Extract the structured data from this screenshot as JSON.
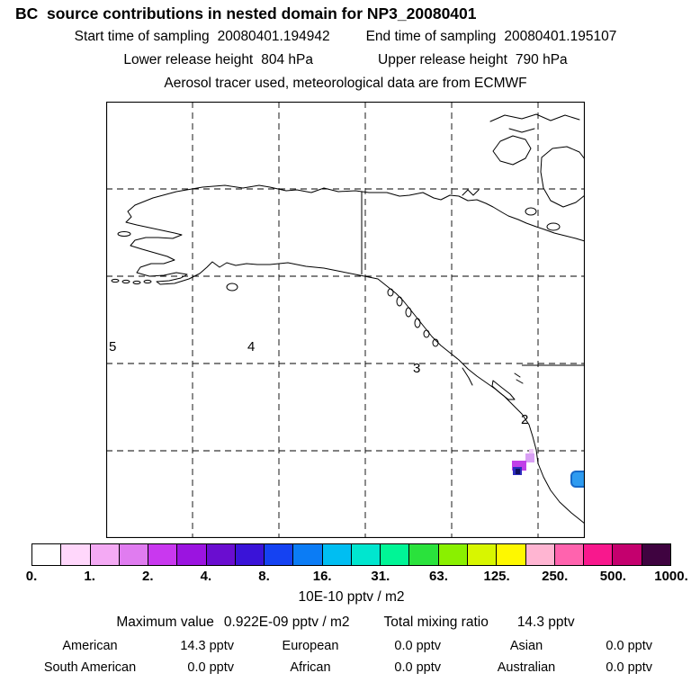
{
  "header": {
    "title": "BC  source contributions in nested domain for NP3_20080401",
    "sampling": {
      "start_label": "Start time of sampling",
      "start_value": "20080401.194942",
      "end_label": "End time of sampling",
      "end_value": "20080401.195107"
    },
    "release": {
      "lower_label": "Lower release height",
      "lower_value": "804 hPa",
      "upper_label": "Upper release height",
      "upper_value": "790 hPa"
    },
    "tracer_line": "Aerosol tracer used, meteorological data are from ECMWF"
  },
  "map": {
    "grid_labels": [
      "5",
      "4",
      "3",
      "2"
    ]
  },
  "colorbar": {
    "colors": [
      "#ffffff",
      "#ffd7fb",
      "#f4aaf4",
      "#e07cf0",
      "#c938ef",
      "#9b14e0",
      "#6a0dd0",
      "#3a13d8",
      "#1542f2",
      "#0b7cf5",
      "#00bef2",
      "#00e6cf",
      "#00f596",
      "#2ae23c",
      "#8af000",
      "#d8f600",
      "#fef800",
      "#ffb5d2",
      "#ff63ae",
      "#f8188d",
      "#c4006e",
      "#3f0340"
    ],
    "ticks": [
      "0.",
      "1.",
      "2.",
      "4.",
      "8.",
      "16.",
      "31.",
      "63.",
      "125.",
      "250.",
      "500.",
      "1000."
    ],
    "unit_label": "10E-10 pptv / m2"
  },
  "stats": {
    "maximum_label": "Maximum value",
    "maximum_value": "0.922E-09 pptv / m2",
    "total_label": "Total mixing ratio",
    "total_value": "14.3 pptv",
    "regions": [
      {
        "label": "American",
        "value": "14.3 pptv"
      },
      {
        "label": "European",
        "value": "0.0 pptv"
      },
      {
        "label": "Asian",
        "value": "0.0 pptv"
      },
      {
        "label": "South American",
        "value": "0.0 pptv"
      },
      {
        "label": "African",
        "value": "0.0 pptv"
      },
      {
        "label": "Australian",
        "value": "0.0 pptv"
      }
    ]
  },
  "chart_data": {
    "type": "heatmap",
    "title": "BC source contributions in nested domain for NP3_20080401",
    "subtitle": "Aerosol tracer used, meteorological data are from ECMWF",
    "region_shown": "Alaska / northwest North America nested domain",
    "sampling_start": "20080401.194942",
    "sampling_end": "20080401.195107",
    "lower_release_height_hPa": 804,
    "upper_release_height_hPa": 790,
    "colorbar": {
      "scale": "log",
      "unit": "10E-10 pptv / m2",
      "tick_values": [
        0,
        1,
        2,
        4,
        8,
        16,
        31,
        63,
        125,
        250,
        500,
        1000
      ]
    },
    "maximum_value": "0.922E-09 pptv / m2",
    "total_mixing_ratio_pptv": 14.3,
    "region_contributions_pptv": {
      "American": 14.3,
      "European": 0.0,
      "Asian": 0.0,
      "South American": 0.0,
      "African": 0.0,
      "Australian": 0.0
    },
    "hotspots": [
      {
        "location": "near US west coast inside domain",
        "colors": "violet/magenta/dark blue cluster"
      },
      {
        "location": "right edge of domain, lower area",
        "colors": "blue blob"
      }
    ],
    "map_grid_line_labels": [
      5,
      4,
      3,
      2
    ],
    "grid": "dashed lat/lon graticule"
  }
}
